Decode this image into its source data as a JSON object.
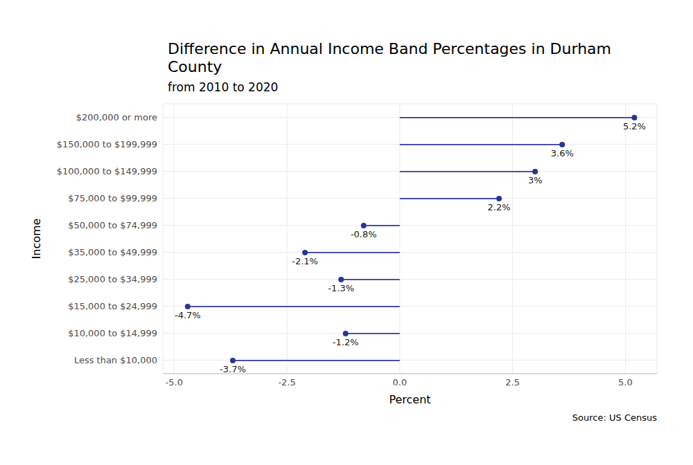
{
  "chart_data": {
    "type": "lollipop",
    "title": "Difference in Annual Income Band Percentages in Durham County",
    "subtitle": "from 2010 to 2020",
    "x_label": "Percent",
    "y_label": "Income",
    "caption": "Source: US Census",
    "orientation": "horizontal",
    "categories": [
      "$200,000 or more",
      "$150,000 to $199,999",
      "$100,000 to $149,999",
      "$75,000 to $99,999",
      "$50,000 to $74,999",
      "$35,000 to $49,999",
      "$25,000 to $34,999",
      "$15,000 to $24,999",
      "$10,000 to $14,999",
      "Less than $10,000"
    ],
    "values": [
      5.2,
      3.6,
      3,
      2.2,
      -0.8,
      -2.1,
      -1.3,
      -4.7,
      -1.2,
      -3.7
    ],
    "value_labels": [
      "5.2%",
      "3.6%",
      "3%",
      "2.2%",
      "-0.8%",
      "-2.1%",
      "-1.3%",
      "-4.7%",
      "-1.2%",
      "-3.7%"
    ],
    "data_labels": true,
    "marker": "circle",
    "color": "#283593",
    "xlim": [
      -5.25,
      5.7
    ],
    "xticks": [
      {
        "value": -5,
        "label": "-5.0"
      },
      -2.5,
      {
        "value": 0,
        "label": "0.0"
      },
      2.5,
      {
        "value": 5,
        "label": "5.0"
      }
    ],
    "grid": true
  }
}
